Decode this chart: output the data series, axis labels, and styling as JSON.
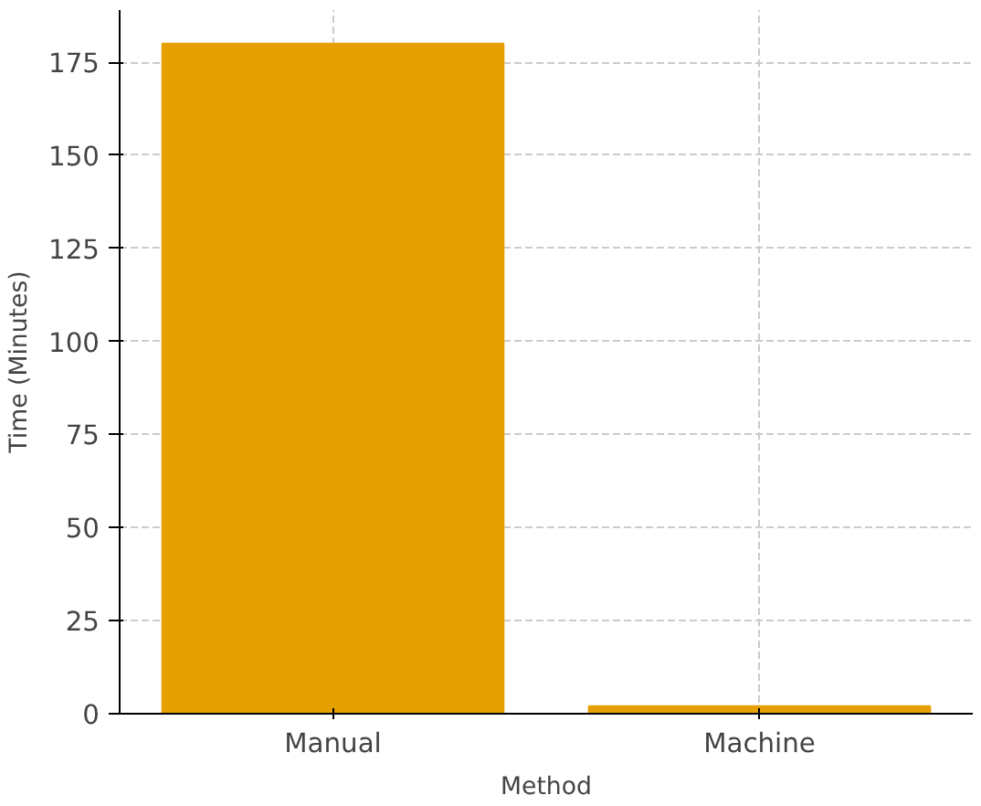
{
  "chart_data": {
    "type": "bar",
    "xlabel": "Method",
    "ylabel": "Time (Minutes)",
    "categories": [
      "Manual",
      "Machine"
    ],
    "values": [
      180,
      2
    ],
    "color": "#e69f00",
    "ylim": [
      0,
      189
    ],
    "yticks": [
      0,
      25,
      50,
      75,
      100,
      125,
      150,
      175
    ],
    "grid": true
  }
}
